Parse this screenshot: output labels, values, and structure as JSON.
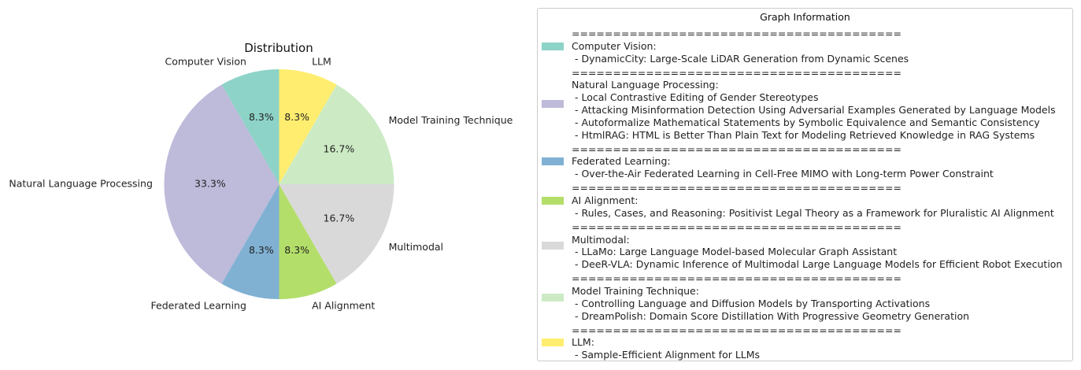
{
  "chart_data": {
    "type": "pie",
    "title": "Distribution",
    "slices": [
      {
        "label": "Computer Vision",
        "value": 1,
        "percent_label": "8.3%",
        "color": "#8dd3c7"
      },
      {
        "label": "Natural Language Processing",
        "value": 4,
        "percent_label": "33.3%",
        "color": "#bebada"
      },
      {
        "label": "Federated Learning",
        "value": 1,
        "percent_label": "8.3%",
        "color": "#80b1d3"
      },
      {
        "label": "AI Alignment",
        "value": 1,
        "percent_label": "8.3%",
        "color": "#b3de69"
      },
      {
        "label": "Multimodal",
        "value": 2,
        "percent_label": "16.7%",
        "color": "#d9d9d9"
      },
      {
        "label": "Model Training Technique",
        "value": 2,
        "percent_label": "16.7%",
        "color": "#ccebc5"
      },
      {
        "label": "LLM",
        "value": 1,
        "percent_label": "8.3%",
        "color": "#ffed6f"
      }
    ],
    "start_angle": 90,
    "direction": "counterclockwise"
  },
  "legend": {
    "title": "Graph Information",
    "separator": "========================================",
    "entries": [
      {
        "category": "Computer Vision:",
        "color": "#8dd3c7",
        "items": [
          " - DynamicCity: Large-Scale LiDAR Generation from Dynamic Scenes"
        ]
      },
      {
        "category": "Natural Language Processing:",
        "color": "#bebada",
        "items": [
          " - Local Contrastive Editing of Gender Stereotypes",
          " - Attacking Misinformation Detection Using Adversarial Examples Generated by Language Models",
          " - Autoformalize Mathematical Statements by Symbolic Equivalence and Semantic Consistency",
          " - HtmlRAG: HTML is Better Than Plain Text for Modeling Retrieved Knowledge in RAG Systems"
        ]
      },
      {
        "category": "Federated Learning:",
        "color": "#80b1d3",
        "items": [
          " - Over-the-Air Federated Learning in Cell-Free MIMO with Long-term Power Constraint"
        ]
      },
      {
        "category": "AI Alignment:",
        "color": "#b3de69",
        "items": [
          " - Rules, Cases, and Reasoning: Positivist Legal Theory as a Framework for Pluralistic AI Alignment"
        ]
      },
      {
        "category": "Multimodal:",
        "color": "#d9d9d9",
        "items": [
          " - LLaMo: Large Language Model-based Molecular Graph Assistant",
          " - DeeR-VLA: Dynamic Inference of Multimodal Large Language Models for Efficient Robot Execution"
        ]
      },
      {
        "category": "Model Training Technique:",
        "color": "#ccebc5",
        "items": [
          " - Controlling Language and Diffusion Models by Transporting Activations",
          " - DreamPolish: Domain Score Distillation With Progressive Geometry Generation"
        ]
      },
      {
        "category": "LLM:",
        "color": "#ffed6f",
        "items": [
          " - Sample-Efficient Alignment for LLMs"
        ]
      }
    ]
  }
}
